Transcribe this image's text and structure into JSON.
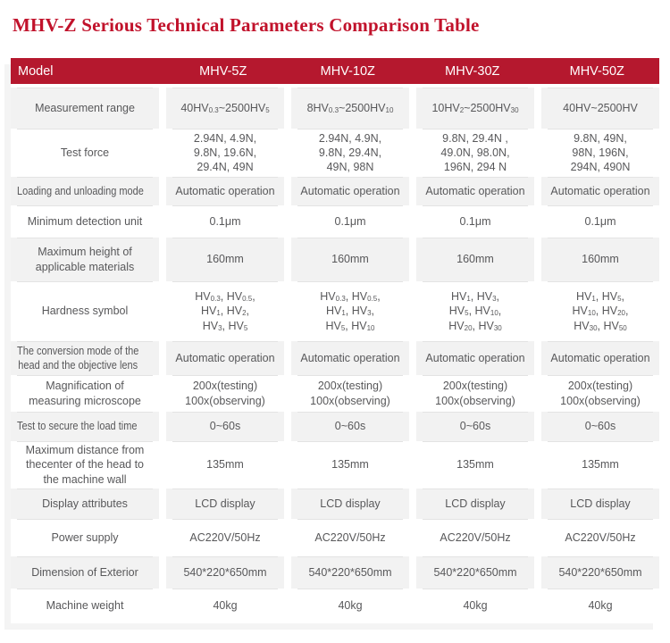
{
  "title": "MHV-Z Serious Technical Parameters Comparison Table",
  "colors": {
    "title_red": "#c1122b",
    "header_bg": "#b5182e",
    "header_text": "#ffffff",
    "row_shade": "#f2f2f2",
    "row_white": "#ffffff",
    "separator_line": "#e3e3e3",
    "body_text": "#58585a"
  },
  "table": {
    "header": {
      "model_label": "Model",
      "models": [
        "MHV-5Z",
        "MHV-10Z",
        "MHV-30Z",
        "MHV-50Z"
      ]
    },
    "rows": [
      {
        "label": [
          "Measurement range"
        ],
        "values": [
          [
            "40HV{0.3}~2500HV{5}"
          ],
          [
            "8HV{0.3}~2500HV{10}"
          ],
          [
            "10HV{2}~2500HV{30}"
          ],
          [
            "40HV~2500HV"
          ]
        ]
      },
      {
        "label": [
          "Test force"
        ],
        "values": [
          [
            "2.94N, 4.9N,",
            "9.8N, 19.6N,",
            "29.4N, 49N"
          ],
          [
            "2.94N, 4.9N,",
            "9.8N, 29.4N,",
            "49N, 98N"
          ],
          [
            "9.8N, 29.4N ,",
            "49.0N, 98.0N,",
            "196N, 294 N"
          ],
          [
            "9.8N, 49N,",
            "98N, 196N,",
            "294N, 490N"
          ]
        ]
      },
      {
        "label": [
          "Loading and unloading mode"
        ],
        "values": [
          [
            "Automatic operation"
          ],
          [
            "Automatic operation"
          ],
          [
            "Automatic operation"
          ],
          [
            "Automatic operation"
          ]
        ]
      },
      {
        "label": [
          "Minimum detection unit"
        ],
        "values": [
          [
            "0.1μm"
          ],
          [
            "0.1μm"
          ],
          [
            "0.1μm"
          ],
          [
            "0.1μm"
          ]
        ]
      },
      {
        "label": [
          "Maximum height of",
          "applicable materials"
        ],
        "values": [
          [
            "160mm"
          ],
          [
            "160mm"
          ],
          [
            "160mm"
          ],
          [
            "160mm"
          ]
        ]
      },
      {
        "label": [
          "Hardness symbol"
        ],
        "values": [
          [
            "HV{0.3}, HV{0.5},",
            "HV{1}, HV{2},",
            "HV{3}, HV{5}"
          ],
          [
            "HV{0.3}, HV{0.5},",
            "HV{1}, HV{3},",
            "HV{5}, HV{10}"
          ],
          [
            "HV{1}, HV{3},",
            "HV{5}, HV{10},",
            "HV{20}, HV{30}"
          ],
          [
            "HV{1}, HV{5},",
            "HV{10}, HV{20},",
            "HV{30}, HV{50}"
          ]
        ]
      },
      {
        "label": [
          "The conversion mode of the",
          "head and the objective lens"
        ],
        "values": [
          [
            "Automatic operation"
          ],
          [
            "Automatic operation"
          ],
          [
            "Automatic operation"
          ],
          [
            "Automatic operation"
          ]
        ]
      },
      {
        "label": [
          "Magnification of",
          "measuring microscope"
        ],
        "values": [
          [
            "200x(testing)",
            "100x(observing)"
          ],
          [
            "200x(testing)",
            "100x(observing)"
          ],
          [
            "200x(testing)",
            "100x(observing)"
          ],
          [
            "200x(testing)",
            "100x(observing)"
          ]
        ]
      },
      {
        "label": [
          "Test to secure the load time"
        ],
        "values": [
          [
            "0~60s"
          ],
          [
            "0~60s"
          ],
          [
            "0~60s"
          ],
          [
            "0~60s"
          ]
        ]
      },
      {
        "label": [
          "Maximum distance from",
          "thecenter of the head to",
          "the machine wall"
        ],
        "values": [
          [
            "135mm"
          ],
          [
            "135mm"
          ],
          [
            "135mm"
          ],
          [
            "135mm"
          ]
        ]
      },
      {
        "label": [
          "Display attributes"
        ],
        "values": [
          [
            "LCD display"
          ],
          [
            "LCD display"
          ],
          [
            "LCD display"
          ],
          [
            "LCD display"
          ]
        ]
      },
      {
        "label": [
          "Power supply"
        ],
        "values": [
          [
            "AC220V/50Hz"
          ],
          [
            "AC220V/50Hz"
          ],
          [
            "AC220V/50Hz"
          ],
          [
            "AC220V/50Hz"
          ]
        ]
      },
      {
        "label": [
          "Dimension of Exterior"
        ],
        "values": [
          [
            "540*220*650mm"
          ],
          [
            "540*220*650mm"
          ],
          [
            "540*220*650mm"
          ],
          [
            "540*220*650mm"
          ]
        ]
      },
      {
        "label": [
          "Machine weight"
        ],
        "values": [
          [
            "40kg"
          ],
          [
            "40kg"
          ],
          [
            "40kg"
          ],
          [
            "40kg"
          ]
        ]
      }
    ]
  }
}
